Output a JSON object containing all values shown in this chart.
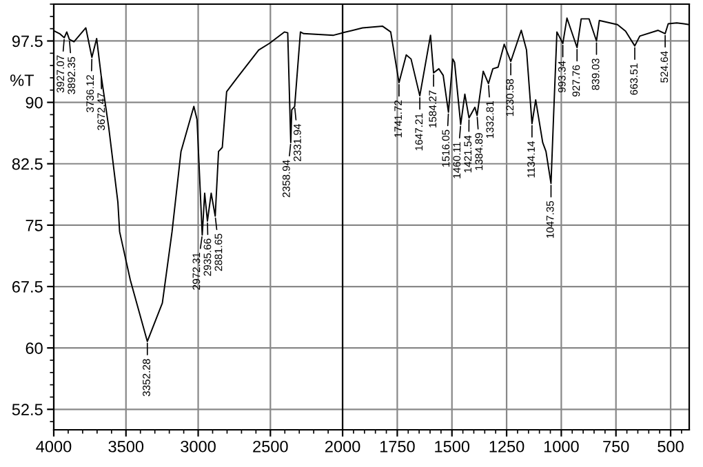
{
  "chart_data": [
    {
      "type": "line",
      "ylabel": "%T",
      "xlim": [
        4000,
        2000
      ],
      "ylim": [
        50,
        102
      ],
      "xticks": [
        4000,
        3500,
        3000,
        2500,
        2000
      ],
      "yticks": [
        52.5,
        60,
        67.5,
        75,
        82.5,
        90,
        97.5
      ],
      "grid": true,
      "marker": "none",
      "line_style": "solid",
      "series": [
        {
          "color": "#000000",
          "x": [
            3995,
            3960,
            3927,
            3910,
            3892,
            3860,
            3778,
            3736,
            3703,
            3672,
            3619,
            3556,
            3544,
            3470,
            3352,
            3248,
            3181,
            3119,
            3030,
            3008,
            2972,
            2955,
            2936,
            2910,
            2882,
            2859,
            2833,
            2803,
            2730,
            2581,
            2507,
            2403,
            2380,
            2359,
            2352,
            2332,
            2292,
            2270,
            2063,
            2000
          ],
          "values": [
            98.7,
            98.4,
            97.9,
            98.6,
            97.7,
            97.4,
            99.1,
            95.5,
            97.8,
            93.3,
            86.9,
            77.8,
            74.2,
            68.3,
            60.8,
            65.5,
            74.2,
            84.0,
            89.5,
            87.9,
            73.8,
            78.9,
            75.5,
            78.9,
            76.1,
            84.0,
            84.5,
            91.3,
            93.0,
            96.4,
            97.2,
            98.6,
            98.5,
            85.1,
            89.1,
            89.5,
            98.6,
            98.4,
            98.2,
            98.5
          ]
        }
      ],
      "annotations": [
        {
          "text": "3927.07",
          "x": 3927,
          "y": 97.9
        },
        {
          "text": "3892.35",
          "x": 3892,
          "y": 97.7
        },
        {
          "text": "3736.12",
          "x": 3736,
          "y": 95.5
        },
        {
          "text": "3672.47",
          "x": 3672,
          "y": 93.3
        },
        {
          "text": "3352.28",
          "x": 3352,
          "y": 60.8
        },
        {
          "text": "2972.31",
          "x": 2972,
          "y": 73.8
        },
        {
          "text": "2935.66",
          "x": 2936,
          "y": 75.5
        },
        {
          "text": "2881.65",
          "x": 2882,
          "y": 76.1
        },
        {
          "text": "2358.94",
          "x": 2359,
          "y": 85.1
        },
        {
          "text": "2331.94",
          "x": 2332,
          "y": 89.5
        }
      ]
    },
    {
      "type": "line",
      "xlim": [
        2000,
        415
      ],
      "ylim": [
        50,
        102
      ],
      "xticks": [
        1750,
        1500,
        1250,
        1000,
        750,
        500
      ],
      "yticks": [
        52.5,
        60,
        67.5,
        75,
        82.5,
        90,
        97.5
      ],
      "tick_labels": "x",
      "grid": true,
      "marker": "none",
      "line_style": "solid",
      "series": [
        {
          "color": "#000000",
          "x": [
            2000,
            1909,
            1817,
            1780,
            1742,
            1709,
            1687,
            1647,
            1598,
            1584,
            1560,
            1540,
            1516,
            1496,
            1488,
            1460,
            1441,
            1422,
            1395,
            1385,
            1357,
            1333,
            1313,
            1289,
            1261,
            1231,
            1183,
            1159,
            1134,
            1117,
            1085,
            1070,
            1047,
            1035,
            1020,
            993,
            974,
            928,
            909,
            873,
            839,
            826,
            743,
            706,
            664,
            641,
            557,
            525,
            511,
            472,
            440,
            415
          ],
          "values": [
            98.5,
            99.1,
            99.3,
            98.6,
            92.4,
            95.8,
            95.3,
            90.8,
            98.2,
            93.6,
            94.1,
            93.3,
            88.8,
            95.3,
            94.9,
            87.3,
            91.0,
            88.1,
            89.4,
            88.4,
            93.8,
            92.3,
            94.1,
            94.3,
            97.1,
            95.0,
            98.8,
            96.4,
            87.4,
            90.3,
            85.1,
            84.0,
            80.1,
            88.5,
            98.6,
            97.2,
            100.3,
            96.7,
            100.2,
            100.2,
            97.5,
            100.0,
            99.5,
            98.7,
            96.9,
            98.1,
            98.8,
            98.4,
            99.6,
            99.7,
            99.6,
            99.5
          ]
        }
      ],
      "annotations": [
        {
          "text": "1741.72",
          "x": 1742,
          "y": 92.4
        },
        {
          "text": "1647.21",
          "x": 1647,
          "y": 90.8
        },
        {
          "text": "1584.27",
          "x": 1584,
          "y": 93.6
        },
        {
          "text": "1516.05",
          "x": 1516,
          "y": 88.8
        },
        {
          "text": "1460.11",
          "x": 1460,
          "y": 87.3
        },
        {
          "text": "1421.54",
          "x": 1422,
          "y": 88.1
        },
        {
          "text": "1384.89",
          "x": 1385,
          "y": 88.4
        },
        {
          "text": "1332.81",
          "x": 1333,
          "y": 92.3
        },
        {
          "text": "1230.58",
          "x": 1231,
          "y": 95.0
        },
        {
          "text": "1134.14",
          "x": 1134,
          "y": 87.4
        },
        {
          "text": "1047.35",
          "x": 1047,
          "y": 80.1
        },
        {
          "text": "993.34",
          "x": 993,
          "y": 97.2
        },
        {
          "text": "927.76",
          "x": 928,
          "y": 96.7
        },
        {
          "text": "839.03",
          "x": 839,
          "y": 97.5
        },
        {
          "text": "663.51",
          "x": 664,
          "y": 96.9
        },
        {
          "text": "524.64",
          "x": 525,
          "y": 98.4
        }
      ]
    }
  ]
}
